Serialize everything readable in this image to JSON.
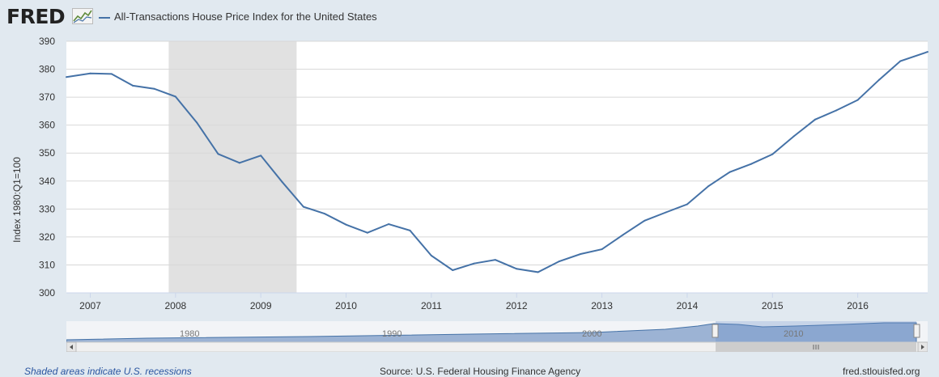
{
  "header": {
    "logo_text": "FRED",
    "series_title": "All-Transactions House Price Index for the United States"
  },
  "colors": {
    "line": "#4572a7",
    "recession": "#e1e1e1",
    "grid": "#d8d8d8",
    "background": "#e1e9f0"
  },
  "chart_data": {
    "type": "line",
    "title": "All-Transactions House Price Index for the United States",
    "xlabel": "",
    "ylabel": "Index 1980:Q1=100",
    "ylim": [
      300,
      390
    ],
    "yticks": [
      300,
      310,
      320,
      330,
      340,
      350,
      360,
      370,
      380,
      390
    ],
    "xlim": [
      2006.72,
      2016.82
    ],
    "xticks": [
      "2007",
      "2008",
      "2009",
      "2010",
      "2011",
      "2012",
      "2013",
      "2014",
      "2015",
      "2016"
    ],
    "grid": true,
    "recessions": [
      {
        "start": 2007.92,
        "end": 2009.42
      }
    ],
    "series": [
      {
        "name": "All-Transactions House Price Index for the United States",
        "x": [
          2006.72,
          2007.0,
          2007.25,
          2007.5,
          2007.75,
          2008.0,
          2008.25,
          2008.5,
          2008.75,
          2009.0,
          2009.25,
          2009.5,
          2009.75,
          2010.0,
          2010.25,
          2010.5,
          2010.75,
          2011.0,
          2011.25,
          2011.5,
          2011.75,
          2012.0,
          2012.25,
          2012.5,
          2012.75,
          2013.0,
          2013.25,
          2013.5,
          2013.75,
          2014.0,
          2014.25,
          2014.5,
          2014.75,
          2015.0,
          2015.25,
          2015.5,
          2015.75,
          2016.0,
          2016.25,
          2016.5,
          2016.82
        ],
        "values": [
          377.2,
          378.5,
          378.3,
          374.1,
          373.0,
          370.2,
          360.9,
          349.7,
          346.5,
          349.1,
          339.7,
          330.8,
          328.3,
          324.4,
          321.5,
          324.6,
          322.3,
          313.3,
          308.1,
          310.5,
          311.8,
          308.6,
          307.4,
          311.3,
          313.9,
          315.6,
          320.8,
          325.8,
          328.8,
          331.7,
          338.2,
          343.2,
          346.1,
          349.6,
          356.0,
          362.0,
          365.3,
          369.0,
          376.2,
          382.9,
          386.2
        ]
      }
    ]
  },
  "navigator": {
    "labels": [
      "1980",
      "1990",
      "2000",
      "2010"
    ]
  },
  "footer": {
    "recession_note": "Shaded areas indicate U.S. recessions",
    "source": "Source: U.S. Federal Housing Finance Agency",
    "site": "fred.stlouisfed.org"
  }
}
